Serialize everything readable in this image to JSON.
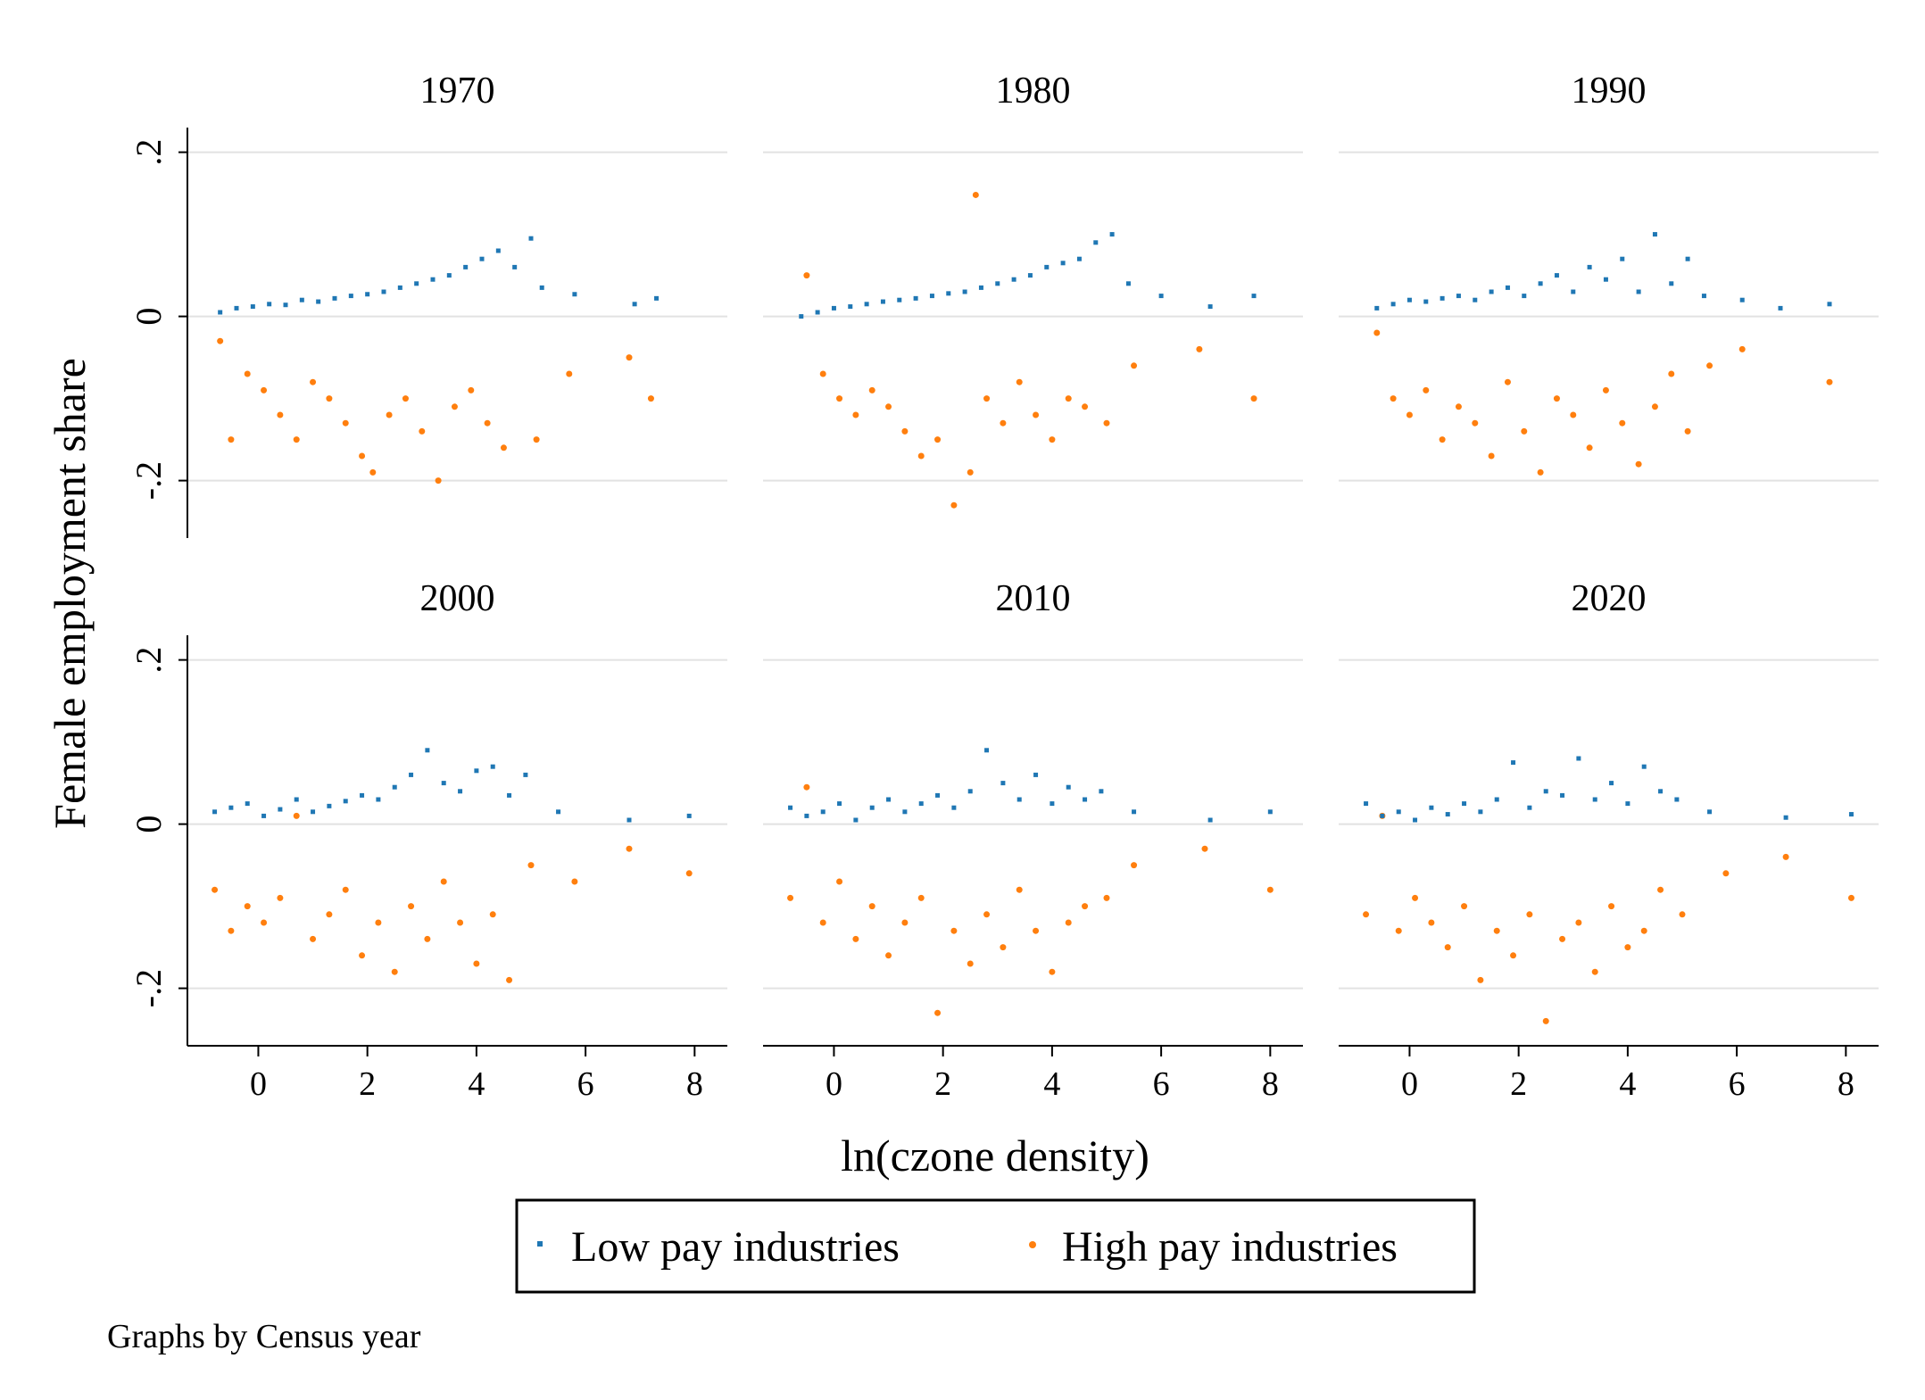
{
  "chart_data": {
    "type": "scatter",
    "layout": "small-multiples",
    "ylabel": "Female employment share",
    "xlabel": "ln(czone density)",
    "note": "Graphs by Census year",
    "xlim": [
      -1.3,
      8.6
    ],
    "ylim": [
      -0.27,
      0.23
    ],
    "x_ticks": [
      0,
      2,
      4,
      6,
      8
    ],
    "x_tick_labels": [
      "0",
      "2",
      "4",
      "6",
      "8"
    ],
    "y_ticks": [
      0.2,
      0,
      -0.2
    ],
    "y_tick_labels": [
      ".2",
      "0",
      "-.2"
    ],
    "grid": true,
    "legend_position": "bottom",
    "series": [
      {
        "name": "Low pay industries",
        "color": "#1f77b4",
        "marker": "small square"
      },
      {
        "name": "High pay industries",
        "color": "#ff7f0e",
        "marker": "round dot"
      }
    ],
    "panels": [
      {
        "title": "1970",
        "low_pay": {
          "x": [
            -0.7,
            -0.4,
            -0.1,
            0.2,
            0.5,
            0.8,
            1.1,
            1.4,
            1.7,
            2.0,
            2.3,
            2.6,
            2.9,
            3.2,
            3.5,
            3.8,
            4.1,
            4.4,
            4.7,
            5.0,
            5.2,
            5.8,
            6.9,
            7.3
          ],
          "y": [
            0.005,
            0.01,
            0.012,
            0.015,
            0.014,
            0.02,
            0.018,
            0.022,
            0.025,
            0.027,
            0.03,
            0.035,
            0.04,
            0.045,
            0.05,
            0.06,
            0.07,
            0.08,
            0.06,
            0.095,
            0.035,
            0.027,
            0.015,
            0.022
          ]
        },
        "high_pay": {
          "x": [
            -0.7,
            -0.5,
            -0.2,
            0.1,
            0.4,
            0.7,
            1.0,
            1.3,
            1.6,
            1.9,
            2.1,
            2.4,
            2.7,
            3.0,
            3.3,
            3.6,
            3.9,
            4.2,
            4.5,
            5.1,
            5.7,
            6.8,
            7.2
          ],
          "y": [
            -0.03,
            -0.15,
            -0.07,
            -0.09,
            -0.12,
            -0.15,
            -0.08,
            -0.1,
            -0.13,
            -0.17,
            -0.19,
            -0.12,
            -0.1,
            -0.14,
            -0.2,
            -0.11,
            -0.09,
            -0.13,
            -0.16,
            -0.15,
            -0.07,
            -0.05,
            -0.1
          ]
        }
      },
      {
        "title": "1980",
        "low_pay": {
          "x": [
            -0.6,
            -0.3,
            0.0,
            0.3,
            0.6,
            0.9,
            1.2,
            1.5,
            1.8,
            2.1,
            2.4,
            2.7,
            3.0,
            3.3,
            3.6,
            3.9,
            4.2,
            4.5,
            4.8,
            5.1,
            5.4,
            6.0,
            6.9,
            7.7
          ],
          "y": [
            0.0,
            0.005,
            0.01,
            0.012,
            0.015,
            0.018,
            0.02,
            0.022,
            0.025,
            0.028,
            0.03,
            0.035,
            0.04,
            0.045,
            0.05,
            0.06,
            0.065,
            0.07,
            0.09,
            0.1,
            0.04,
            0.025,
            0.012,
            0.025
          ]
        },
        "high_pay": {
          "x": [
            -0.5,
            -0.2,
            0.1,
            0.4,
            0.7,
            1.0,
            1.3,
            1.6,
            1.9,
            2.2,
            2.5,
            2.6,
            2.8,
            3.1,
            3.4,
            3.7,
            4.0,
            4.3,
            4.6,
            5.0,
            5.5,
            6.7,
            7.7
          ],
          "y": [
            0.05,
            -0.07,
            -0.1,
            -0.12,
            -0.09,
            -0.11,
            -0.14,
            -0.17,
            -0.15,
            -0.23,
            -0.19,
            0.148,
            -0.1,
            -0.13,
            -0.08,
            -0.12,
            -0.15,
            -0.1,
            -0.11,
            -0.13,
            -0.06,
            -0.04,
            -0.1
          ]
        }
      },
      {
        "title": "1990",
        "low_pay": {
          "x": [
            -0.6,
            -0.3,
            0.0,
            0.3,
            0.6,
            0.9,
            1.2,
            1.5,
            1.8,
            2.1,
            2.4,
            2.7,
            3.0,
            3.3,
            3.6,
            3.9,
            4.2,
            4.5,
            4.8,
            5.1,
            5.4,
            6.1,
            6.8,
            7.7
          ],
          "y": [
            0.01,
            0.015,
            0.02,
            0.018,
            0.022,
            0.025,
            0.02,
            0.03,
            0.035,
            0.025,
            0.04,
            0.05,
            0.03,
            0.06,
            0.045,
            0.07,
            0.03,
            0.1,
            0.04,
            0.07,
            0.025,
            0.02,
            0.01,
            0.015
          ]
        },
        "high_pay": {
          "x": [
            -0.6,
            -0.3,
            0.0,
            0.3,
            0.6,
            0.9,
            1.2,
            1.5,
            1.8,
            2.1,
            2.4,
            2.7,
            3.0,
            3.3,
            3.6,
            3.9,
            4.2,
            4.5,
            4.8,
            5.1,
            5.5,
            6.1,
            7.7
          ],
          "y": [
            -0.02,
            -0.1,
            -0.12,
            -0.09,
            -0.15,
            -0.11,
            -0.13,
            -0.17,
            -0.08,
            -0.14,
            -0.19,
            -0.1,
            -0.12,
            -0.16,
            -0.09,
            -0.13,
            -0.18,
            -0.11,
            -0.07,
            -0.14,
            -0.06,
            -0.04,
            -0.08
          ]
        }
      },
      {
        "title": "2000",
        "low_pay": {
          "x": [
            -0.8,
            -0.5,
            -0.2,
            0.1,
            0.4,
            0.7,
            1.0,
            1.3,
            1.6,
            1.9,
            2.2,
            2.5,
            2.8,
            3.1,
            3.4,
            3.7,
            4.0,
            4.3,
            4.6,
            4.9,
            5.5,
            6.8,
            7.9
          ],
          "y": [
            0.015,
            0.02,
            0.025,
            0.01,
            0.018,
            0.03,
            0.015,
            0.022,
            0.028,
            0.035,
            0.03,
            0.045,
            0.06,
            0.09,
            0.05,
            0.04,
            0.065,
            0.07,
            0.035,
            0.06,
            0.015,
            0.005,
            0.01
          ]
        },
        "high_pay": {
          "x": [
            -0.8,
            -0.5,
            -0.2,
            0.1,
            0.4,
            0.7,
            1.0,
            1.3,
            1.6,
            1.9,
            2.2,
            2.5,
            2.8,
            3.1,
            3.4,
            3.7,
            4.0,
            4.3,
            4.6,
            5.0,
            5.8,
            6.8,
            7.9
          ],
          "y": [
            -0.08,
            -0.13,
            -0.1,
            -0.12,
            -0.09,
            0.01,
            -0.14,
            -0.11,
            -0.08,
            -0.16,
            -0.12,
            -0.18,
            -0.1,
            -0.14,
            -0.07,
            -0.12,
            -0.17,
            -0.11,
            -0.19,
            -0.05,
            -0.07,
            -0.03,
            -0.06
          ]
        }
      },
      {
        "title": "2010",
        "low_pay": {
          "x": [
            -0.8,
            -0.5,
            -0.2,
            0.1,
            0.4,
            0.7,
            1.0,
            1.3,
            1.6,
            1.9,
            2.2,
            2.5,
            2.8,
            3.1,
            3.4,
            3.7,
            4.0,
            4.3,
            4.6,
            4.9,
            5.5,
            6.9,
            8.0
          ],
          "y": [
            0.02,
            0.01,
            0.015,
            0.025,
            0.005,
            0.02,
            0.03,
            0.015,
            0.025,
            0.035,
            0.02,
            0.04,
            0.09,
            0.05,
            0.03,
            0.06,
            0.025,
            0.045,
            0.03,
            0.04,
            0.015,
            0.005,
            0.015
          ]
        },
        "high_pay": {
          "x": [
            -0.8,
            -0.5,
            -0.2,
            0.1,
            0.4,
            0.7,
            1.0,
            1.3,
            1.6,
            1.9,
            2.2,
            2.5,
            2.8,
            3.1,
            3.4,
            3.7,
            4.0,
            4.3,
            4.6,
            5.0,
            5.5,
            6.8,
            8.0
          ],
          "y": [
            -0.09,
            0.045,
            -0.12,
            -0.07,
            -0.14,
            -0.1,
            -0.16,
            -0.12,
            -0.09,
            -0.23,
            -0.13,
            -0.17,
            -0.11,
            -0.15,
            -0.08,
            -0.13,
            -0.18,
            -0.12,
            -0.1,
            -0.09,
            -0.05,
            -0.03,
            -0.08
          ]
        }
      },
      {
        "title": "2020",
        "low_pay": {
          "x": [
            -0.8,
            -0.5,
            -0.2,
            0.1,
            0.4,
            0.7,
            1.0,
            1.3,
            1.6,
            1.9,
            2.2,
            2.5,
            2.8,
            3.1,
            3.4,
            3.7,
            4.0,
            4.3,
            4.6,
            4.9,
            5.5,
            6.9,
            8.1
          ],
          "y": [
            0.025,
            0.01,
            0.015,
            0.005,
            0.02,
            0.012,
            0.025,
            0.015,
            0.03,
            0.075,
            0.02,
            0.04,
            0.035,
            0.08,
            0.03,
            0.05,
            0.025,
            0.07,
            0.04,
            0.03,
            0.015,
            0.008,
            0.012
          ]
        },
        "high_pay": {
          "x": [
            -0.8,
            -0.5,
            -0.2,
            0.1,
            0.4,
            0.7,
            1.0,
            1.3,
            1.6,
            1.9,
            2.2,
            2.5,
            2.8,
            3.1,
            3.4,
            3.7,
            4.0,
            4.3,
            4.6,
            5.0,
            5.8,
            6.9,
            8.1
          ],
          "y": [
            -0.11,
            0.01,
            -0.13,
            -0.09,
            -0.12,
            -0.15,
            -0.1,
            -0.19,
            -0.13,
            -0.16,
            -0.11,
            -0.24,
            -0.14,
            -0.12,
            -0.18,
            -0.1,
            -0.15,
            -0.13,
            -0.08,
            -0.11,
            -0.06,
            -0.04,
            -0.09
          ]
        }
      }
    ]
  }
}
